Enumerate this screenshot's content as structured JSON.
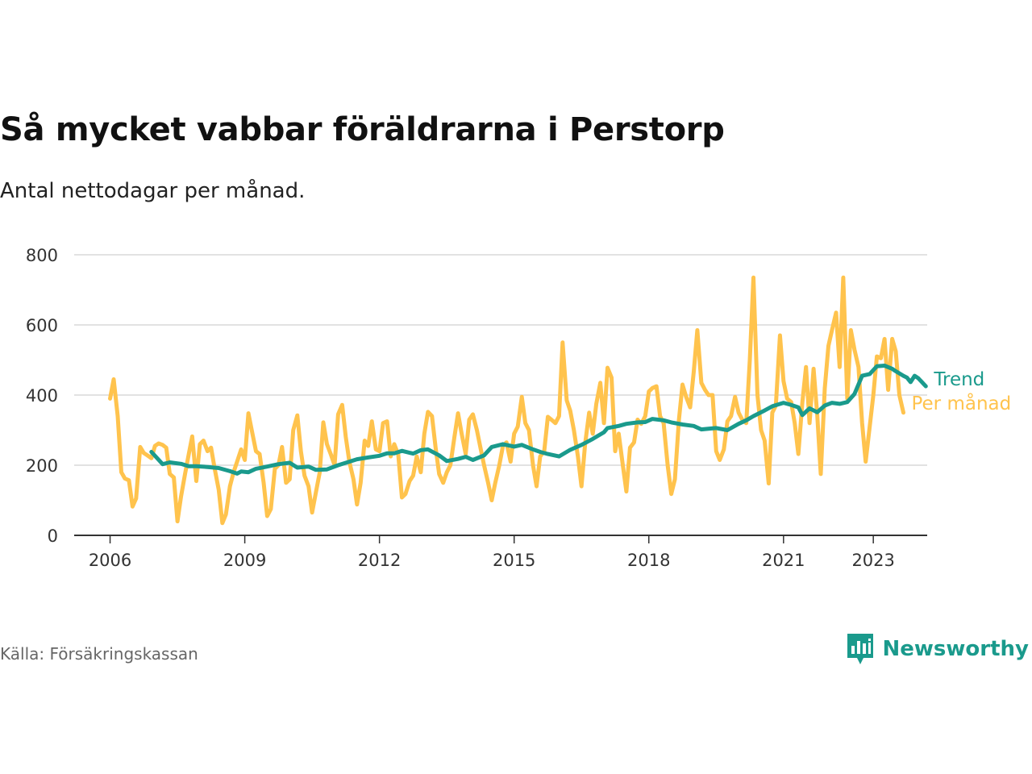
{
  "title": "Så mycket vabbar föräldrarna i Perstorp",
  "subtitle": "Antal nettodagar per månad.",
  "source": "Källa: Försäkringskassan",
  "brand": {
    "name": "Newsworthy",
    "icon": "newsworthy-logo-icon",
    "color": "#1a9a8c"
  },
  "chart_data": {
    "type": "line",
    "x_axis": {
      "tick_labels": [
        "2006",
        "2009",
        "2012",
        "2015",
        "2018",
        "2021",
        "2023"
      ],
      "range": [
        2005.2,
        2024.2
      ]
    },
    "y_axis": {
      "tick_labels": [
        "0",
        "200",
        "400",
        "600",
        "800"
      ],
      "range": [
        0,
        800
      ]
    },
    "grid": true,
    "legend_placement": "right, at line ends",
    "series": [
      {
        "name": "Per månad",
        "color": "#ffc34d",
        "points": [
          [
            2006.0,
            390
          ],
          [
            2006.08,
            445
          ],
          [
            2006.17,
            340
          ],
          [
            2006.25,
            180
          ],
          [
            2006.33,
            162
          ],
          [
            2006.42,
            157
          ],
          [
            2006.5,
            82
          ],
          [
            2006.58,
            105
          ],
          [
            2006.67,
            252
          ],
          [
            2006.75,
            235
          ],
          [
            2006.83,
            228
          ],
          [
            2006.92,
            220
          ],
          [
            2007.0,
            255
          ],
          [
            2007.08,
            262
          ],
          [
            2007.17,
            258
          ],
          [
            2007.25,
            250
          ],
          [
            2007.33,
            175
          ],
          [
            2007.42,
            165
          ],
          [
            2007.5,
            40
          ],
          [
            2007.58,
            110
          ],
          [
            2007.67,
            175
          ],
          [
            2007.75,
            230
          ],
          [
            2007.83,
            282
          ],
          [
            2007.92,
            155
          ],
          [
            2008.0,
            260
          ],
          [
            2008.08,
            270
          ],
          [
            2008.17,
            240
          ],
          [
            2008.25,
            250
          ],
          [
            2008.33,
            190
          ],
          [
            2008.42,
            130
          ],
          [
            2008.5,
            35
          ],
          [
            2008.58,
            60
          ],
          [
            2008.67,
            140
          ],
          [
            2008.75,
            180
          ],
          [
            2008.83,
            210
          ],
          [
            2008.92,
            245
          ],
          [
            2009.0,
            215
          ],
          [
            2009.08,
            348
          ],
          [
            2009.17,
            290
          ],
          [
            2009.25,
            240
          ],
          [
            2009.33,
            232
          ],
          [
            2009.42,
            150
          ],
          [
            2009.5,
            55
          ],
          [
            2009.58,
            75
          ],
          [
            2009.67,
            190
          ],
          [
            2009.75,
            200
          ],
          [
            2009.83,
            252
          ],
          [
            2009.92,
            150
          ],
          [
            2010.0,
            160
          ],
          [
            2010.08,
            300
          ],
          [
            2010.17,
            342
          ],
          [
            2010.25,
            240
          ],
          [
            2010.33,
            170
          ],
          [
            2010.42,
            140
          ],
          [
            2010.5,
            65
          ],
          [
            2010.58,
            120
          ],
          [
            2010.67,
            180
          ],
          [
            2010.75,
            322
          ],
          [
            2010.83,
            260
          ],
          [
            2010.92,
            230
          ],
          [
            2011.0,
            200
          ],
          [
            2011.08,
            345
          ],
          [
            2011.17,
            372
          ],
          [
            2011.25,
            280
          ],
          [
            2011.33,
            210
          ],
          [
            2011.42,
            160
          ],
          [
            2011.5,
            88
          ],
          [
            2011.58,
            150
          ],
          [
            2011.67,
            270
          ],
          [
            2011.75,
            255
          ],
          [
            2011.83,
            325
          ],
          [
            2011.92,
            245
          ],
          [
            2012.0,
            240
          ],
          [
            2012.08,
            320
          ],
          [
            2012.17,
            325
          ],
          [
            2012.25,
            225
          ],
          [
            2012.33,
            260
          ],
          [
            2012.42,
            230
          ],
          [
            2012.5,
            108
          ],
          [
            2012.58,
            118
          ],
          [
            2012.67,
            155
          ],
          [
            2012.75,
            170
          ],
          [
            2012.83,
            225
          ],
          [
            2012.92,
            180
          ],
          [
            2013.0,
            290
          ],
          [
            2013.08,
            352
          ],
          [
            2013.17,
            340
          ],
          [
            2013.25,
            250
          ],
          [
            2013.33,
            175
          ],
          [
            2013.42,
            150
          ],
          [
            2013.5,
            180
          ],
          [
            2013.58,
            200
          ],
          [
            2013.67,
            280
          ],
          [
            2013.75,
            348
          ],
          [
            2013.83,
            290
          ],
          [
            2013.92,
            232
          ],
          [
            2014.0,
            330
          ],
          [
            2014.08,
            345
          ],
          [
            2014.17,
            300
          ],
          [
            2014.25,
            250
          ],
          [
            2014.33,
            200
          ],
          [
            2014.42,
            150
          ],
          [
            2014.5,
            100
          ],
          [
            2014.58,
            150
          ],
          [
            2014.67,
            200
          ],
          [
            2014.75,
            255
          ],
          [
            2014.83,
            265
          ],
          [
            2014.92,
            210
          ],
          [
            2015.0,
            290
          ],
          [
            2015.08,
            310
          ],
          [
            2015.17,
            395
          ],
          [
            2015.25,
            320
          ],
          [
            2015.33,
            300
          ],
          [
            2015.42,
            200
          ],
          [
            2015.5,
            140
          ],
          [
            2015.58,
            225
          ],
          [
            2015.67,
            240
          ],
          [
            2015.75,
            338
          ],
          [
            2015.83,
            330
          ],
          [
            2015.92,
            320
          ],
          [
            2016.0,
            340
          ],
          [
            2016.08,
            550
          ],
          [
            2016.17,
            385
          ],
          [
            2016.25,
            355
          ],
          [
            2016.33,
            300
          ],
          [
            2016.42,
            225
          ],
          [
            2016.5,
            140
          ],
          [
            2016.58,
            260
          ],
          [
            2016.67,
            350
          ],
          [
            2016.75,
            290
          ],
          [
            2016.83,
            375
          ],
          [
            2016.92,
            435
          ],
          [
            2017.0,
            320
          ],
          [
            2017.08,
            478
          ],
          [
            2017.17,
            450
          ],
          [
            2017.25,
            240
          ],
          [
            2017.33,
            290
          ],
          [
            2017.42,
            200
          ],
          [
            2017.5,
            125
          ],
          [
            2017.58,
            250
          ],
          [
            2017.67,
            265
          ],
          [
            2017.75,
            330
          ],
          [
            2017.83,
            318
          ],
          [
            2017.92,
            340
          ],
          [
            2018.0,
            410
          ],
          [
            2018.08,
            420
          ],
          [
            2018.17,
            425
          ],
          [
            2018.25,
            340
          ],
          [
            2018.33,
            320
          ],
          [
            2018.42,
            200
          ],
          [
            2018.5,
            118
          ],
          [
            2018.58,
            160
          ],
          [
            2018.67,
            330
          ],
          [
            2018.75,
            430
          ],
          [
            2018.83,
            395
          ],
          [
            2018.92,
            365
          ],
          [
            2019.0,
            465
          ],
          [
            2019.08,
            585
          ],
          [
            2019.17,
            435
          ],
          [
            2019.25,
            415
          ],
          [
            2019.33,
            400
          ],
          [
            2019.42,
            400
          ],
          [
            2019.5,
            240
          ],
          [
            2019.58,
            215
          ],
          [
            2019.67,
            245
          ],
          [
            2019.75,
            325
          ],
          [
            2019.83,
            340
          ],
          [
            2019.92,
            395
          ],
          [
            2020.0,
            350
          ],
          [
            2020.08,
            330
          ],
          [
            2020.17,
            320
          ],
          [
            2020.25,
            500
          ],
          [
            2020.33,
            735
          ],
          [
            2020.42,
            400
          ],
          [
            2020.5,
            300
          ],
          [
            2020.58,
            270
          ],
          [
            2020.67,
            148
          ],
          [
            2020.75,
            350
          ],
          [
            2020.83,
            370
          ],
          [
            2020.92,
            570
          ],
          [
            2021.0,
            440
          ],
          [
            2021.08,
            390
          ],
          [
            2021.17,
            380
          ],
          [
            2021.25,
            320
          ],
          [
            2021.33,
            232
          ],
          [
            2021.42,
            380
          ],
          [
            2021.5,
            480
          ],
          [
            2021.58,
            320
          ],
          [
            2021.67,
            475
          ],
          [
            2021.75,
            345
          ],
          [
            2021.83,
            175
          ],
          [
            2021.92,
            420
          ],
          [
            2022.0,
            540
          ],
          [
            2022.08,
            585
          ],
          [
            2022.17,
            635
          ],
          [
            2022.25,
            480
          ],
          [
            2022.33,
            735
          ],
          [
            2022.42,
            390
          ],
          [
            2022.5,
            585
          ],
          [
            2022.58,
            530
          ],
          [
            2022.67,
            480
          ],
          [
            2022.75,
            320
          ],
          [
            2022.83,
            210
          ],
          [
            2022.92,
            310
          ],
          [
            2023.0,
            400
          ],
          [
            2023.08,
            510
          ],
          [
            2023.17,
            505
          ],
          [
            2023.25,
            560
          ],
          [
            2023.33,
            415
          ],
          [
            2023.42,
            560
          ],
          [
            2023.5,
            525
          ],
          [
            2023.58,
            400
          ],
          [
            2023.67,
            350
          ]
        ]
      },
      {
        "name": "Trend",
        "color": "#1a9a8c",
        "points": [
          [
            2006.92,
            238
          ],
          [
            2007.17,
            203
          ],
          [
            2007.33,
            208
          ],
          [
            2007.58,
            204
          ],
          [
            2007.75,
            197
          ],
          [
            2007.92,
            197
          ],
          [
            2008.17,
            195
          ],
          [
            2008.42,
            192
          ],
          [
            2008.67,
            183
          ],
          [
            2008.83,
            176
          ],
          [
            2008.92,
            182
          ],
          [
            2009.08,
            180
          ],
          [
            2009.25,
            190
          ],
          [
            2009.5,
            196
          ],
          [
            2009.75,
            203
          ],
          [
            2010.0,
            207
          ],
          [
            2010.17,
            193
          ],
          [
            2010.42,
            196
          ],
          [
            2010.58,
            187
          ],
          [
            2010.83,
            188
          ],
          [
            2011.08,
            200
          ],
          [
            2011.33,
            210
          ],
          [
            2011.5,
            217
          ],
          [
            2011.75,
            222
          ],
          [
            2012.0,
            227
          ],
          [
            2012.17,
            234
          ],
          [
            2012.33,
            234
          ],
          [
            2012.5,
            241
          ],
          [
            2012.75,
            233
          ],
          [
            2012.92,
            243
          ],
          [
            2013.08,
            245
          ],
          [
            2013.33,
            228
          ],
          [
            2013.5,
            212
          ],
          [
            2013.75,
            218
          ],
          [
            2013.92,
            224
          ],
          [
            2014.08,
            215
          ],
          [
            2014.33,
            228
          ],
          [
            2014.5,
            252
          ],
          [
            2014.75,
            260
          ],
          [
            2015.0,
            253
          ],
          [
            2015.17,
            258
          ],
          [
            2015.42,
            245
          ],
          [
            2015.58,
            238
          ],
          [
            2015.75,
            232
          ],
          [
            2016.0,
            225
          ],
          [
            2016.25,
            244
          ],
          [
            2016.5,
            258
          ],
          [
            2016.75,
            275
          ],
          [
            2017.0,
            294
          ],
          [
            2017.08,
            306
          ],
          [
            2017.33,
            312
          ],
          [
            2017.5,
            318
          ],
          [
            2017.75,
            322
          ],
          [
            2017.92,
            323
          ],
          [
            2018.08,
            332
          ],
          [
            2018.33,
            328
          ],
          [
            2018.5,
            322
          ],
          [
            2018.75,
            316
          ],
          [
            2019.0,
            312
          ],
          [
            2019.17,
            302
          ],
          [
            2019.33,
            304
          ],
          [
            2019.5,
            306
          ],
          [
            2019.75,
            300
          ],
          [
            2020.0,
            318
          ],
          [
            2020.17,
            328
          ],
          [
            2020.33,
            340
          ],
          [
            2020.58,
            356
          ],
          [
            2020.75,
            368
          ],
          [
            2021.0,
            378
          ],
          [
            2021.17,
            372
          ],
          [
            2021.33,
            365
          ],
          [
            2021.42,
            343
          ],
          [
            2021.58,
            362
          ],
          [
            2021.75,
            351
          ],
          [
            2021.92,
            370
          ],
          [
            2022.08,
            378
          ],
          [
            2022.25,
            375
          ],
          [
            2022.42,
            380
          ],
          [
            2022.58,
            403
          ],
          [
            2022.75,
            455
          ],
          [
            2022.92,
            460
          ],
          [
            2023.08,
            482
          ],
          [
            2023.25,
            484
          ],
          [
            2023.42,
            475
          ],
          [
            2023.5,
            468
          ],
          [
            2023.67,
            455
          ],
          [
            2023.75,
            450
          ],
          [
            2023.83,
            437
          ],
          [
            2023.92,
            455
          ],
          [
            2024.0,
            448
          ],
          [
            2024.17,
            425
          ]
        ]
      }
    ]
  }
}
